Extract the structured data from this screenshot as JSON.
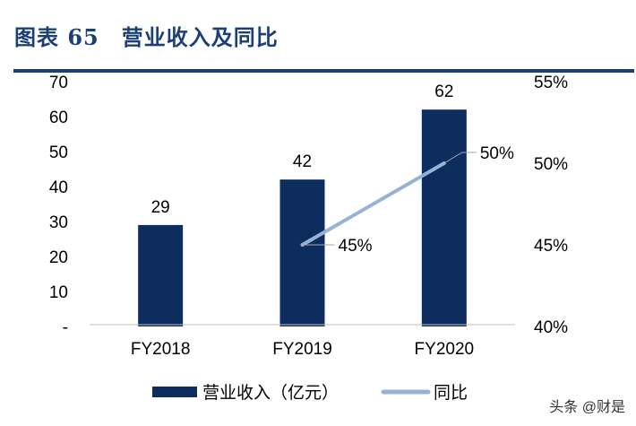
{
  "title": "图表 65　营业收入及同比",
  "watermark": "头条 @财是",
  "chart_data": {
    "type": "bar",
    "categories": [
      "FY2018",
      "FY2019",
      "FY2020"
    ],
    "series": [
      {
        "name": "营业收入（亿元）",
        "type": "bar",
        "axis": "left",
        "values": [
          29,
          42,
          62
        ],
        "labels": [
          "29",
          "42",
          "62"
        ],
        "color": "#0d2d5e"
      },
      {
        "name": "同比",
        "type": "line",
        "axis": "right",
        "values": [
          null,
          45,
          50
        ],
        "labels": [
          "",
          "45%",
          "50%"
        ],
        "color": "#95b3d7"
      }
    ],
    "ylim": [
      0,
      70
    ],
    "yticks": [
      "-",
      "10",
      "20",
      "30",
      "40",
      "50",
      "60",
      "70"
    ],
    "y2lim": [
      40,
      55
    ],
    "y2ticks": [
      "40%",
      "45%",
      "50%",
      "55%"
    ],
    "grid": false,
    "legend": "bottom"
  }
}
